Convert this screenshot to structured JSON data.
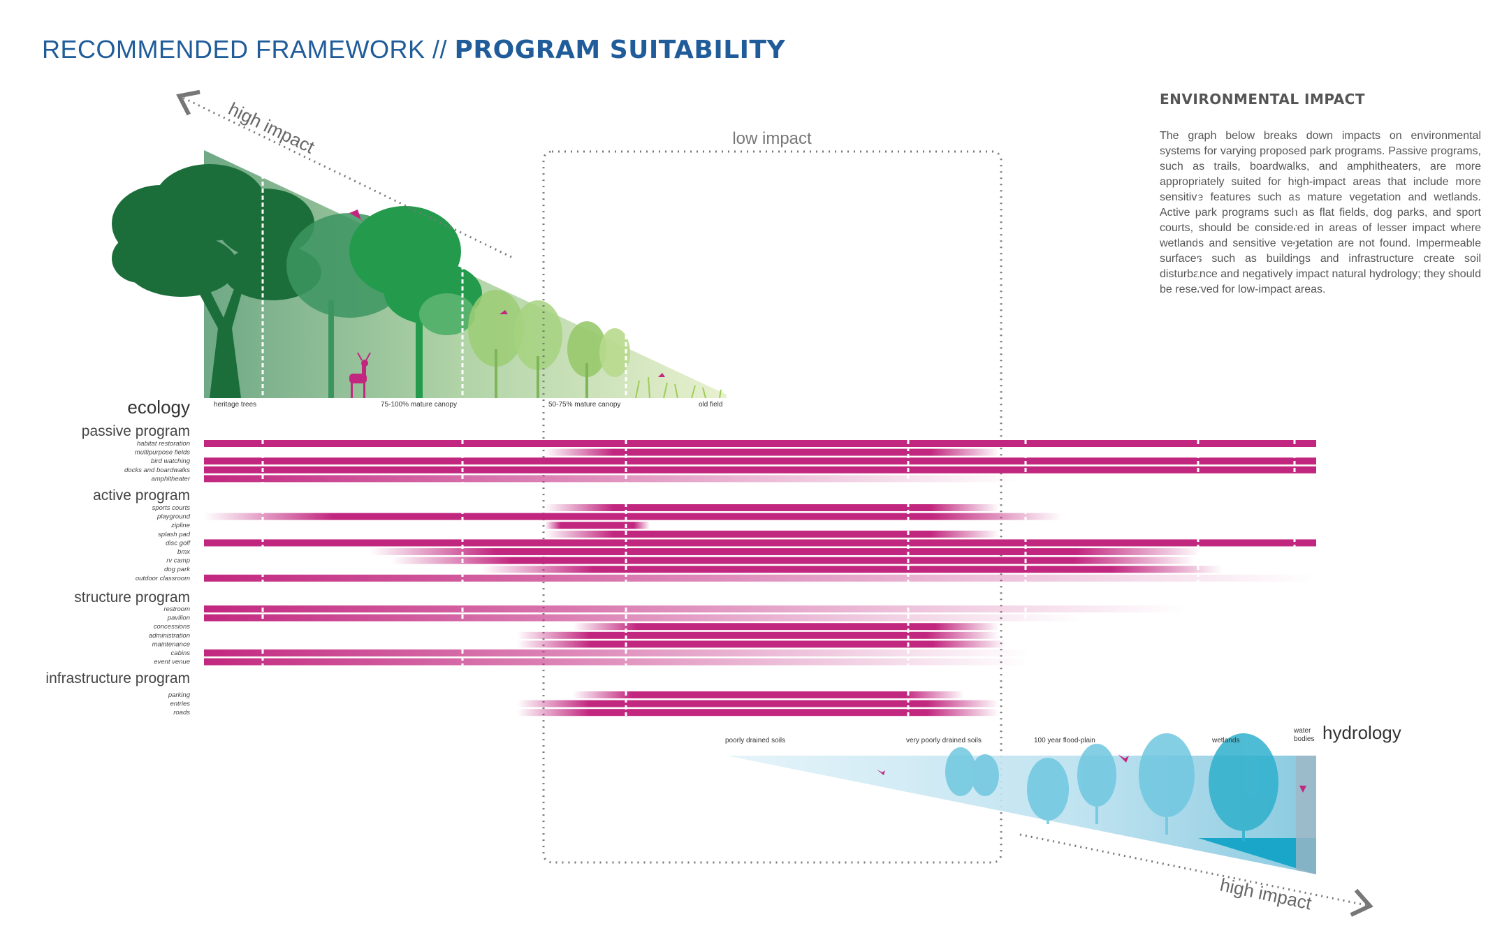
{
  "title": {
    "light": "RECOMMENDED FRAMEWORK // ",
    "bold": "PROGRAM SUITABILITY"
  },
  "sidebar": {
    "heading": "ENVIRONMENTAL IMPACT",
    "body": "The graph below breaks down impacts on environmental systems for varying proposed park programs. Passive programs, such as trails, boardwalks, and amphitheaters, are more appropriately suited for high-impact areas that include more sensitive features such as mature vegetation and wetlands. Active park programs such as flat fields, dog parks, and sport courts, should be considered in areas of lesser impact where wetlands and sensitive vegetation are not found. Impermeable surfaces such as buildings and infrastructure create soil disturbance and negatively impact natural hydrology; they should be reserved for low-impact areas."
  },
  "labels": {
    "high_impact_top": "high impact",
    "low_impact": "low impact",
    "high_impact_bottom": "high impact",
    "ecology": "ecology",
    "hydrology": "hydrology"
  },
  "colors": {
    "title_blue": "#1f5c99",
    "program_magenta": "#c2277f",
    "ecology_green": "#1e7a3c",
    "hydrology_blue": "#4fb6d3"
  },
  "ecology_zones": [
    "heritage trees",
    "75-100% mature canopy",
    "50-75% mature canopy",
    "old field"
  ],
  "hydrology_zones": [
    "poorly drained soils",
    "very poorly drained soils",
    "100 year flood-plain",
    "wetlands",
    "water bodies"
  ],
  "groups": [
    {
      "name": "passive program",
      "items": [
        "habitat restoration",
        "multipurpose fields",
        "bird watching",
        "docks and boardwalks",
        "amphitheater"
      ]
    },
    {
      "name": "active program",
      "items": [
        "sports courts",
        "playground",
        "zipline",
        "splash pad",
        "disc golf",
        "bmx",
        "rv camp",
        "dog park",
        "outdoor classroom"
      ]
    },
    {
      "name": "structure program",
      "items": [
        "restroom",
        "pavilion",
        "concessions",
        "administration",
        "maintenance",
        "cabins",
        "event venue"
      ]
    },
    {
      "name": "infrastructure program",
      "items": [
        "parking",
        "entries",
        "roads"
      ]
    }
  ]
}
